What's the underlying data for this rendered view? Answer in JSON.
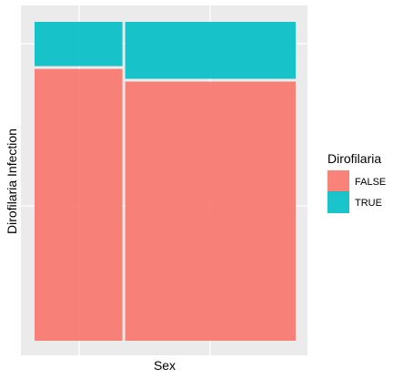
{
  "chart_data": {
    "type": "mosaic",
    "xlabel": "Sex",
    "ylabel": "Dirofilaria Infection",
    "categories": [
      "",
      ""
    ],
    "column_widths": [
      0.34,
      0.66
    ],
    "series": [
      {
        "name": "FALSE",
        "color": "#F8766D",
        "values": [
          0.86,
          0.82
        ]
      },
      {
        "name": "TRUE",
        "color": "#00BFC4",
        "values": [
          0.14,
          0.18
        ]
      }
    ],
    "ylim": [
      0,
      1
    ],
    "grid": true,
    "legend": {
      "title": "Dirofilaria",
      "position": "right",
      "items": [
        {
          "label": "FALSE",
          "color": "#F8766D"
        },
        {
          "label": "TRUE",
          "color": "#00BFC4"
        }
      ]
    }
  }
}
